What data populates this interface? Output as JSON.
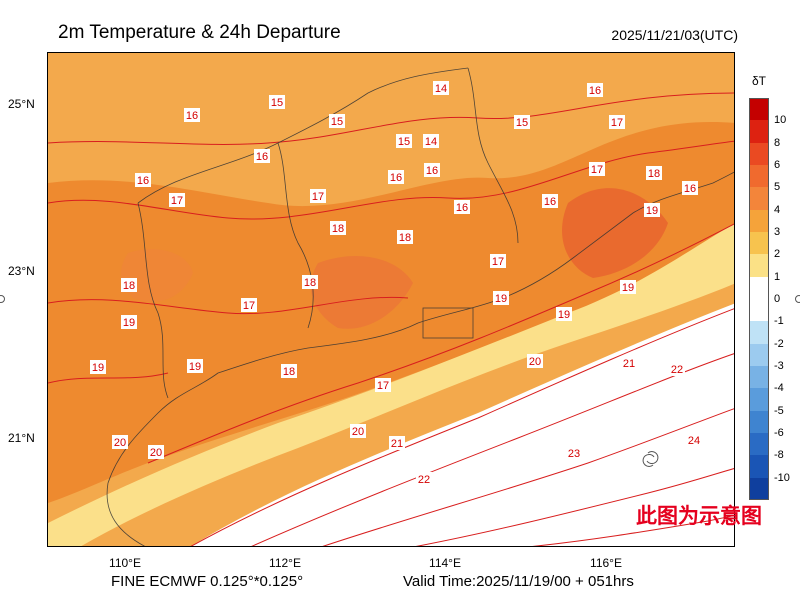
{
  "header": {
    "title": "2m Temperature & 24h Departure",
    "datetime": "2025/11/21/03(UTC)"
  },
  "axes": {
    "lat_labels": [
      "25°N",
      "23°N",
      "21°N"
    ],
    "lon_labels": [
      "110°E",
      "112°E",
      "114°E",
      "116°E"
    ]
  },
  "footer": {
    "model": "FINE ECMWF 0.125°*0.125°",
    "valid_time": "Valid Time:2025/11/19/00 + 051hrs"
  },
  "watermark": "此图为示意图",
  "colorbar": {
    "title": "δT",
    "labels": [
      "10",
      "8",
      "6",
      "5",
      "4",
      "3",
      "2",
      "1",
      "0",
      "-1",
      "-2",
      "-3",
      "-4",
      "-5",
      "-6",
      "-8",
      "-10"
    ],
    "colors": [
      "#c40000",
      "#dd2211",
      "#ea4a22",
      "#f06a2e",
      "#f3853a",
      "#f5a33a",
      "#f7c34e",
      "#fbe186",
      "#ffffff",
      "#ffffff",
      "#bfe2f6",
      "#9ccbef",
      "#78b2e5",
      "#5a9cdc",
      "#3f84d0",
      "#2a6bc4",
      "#1a55b5",
      "#0f3f9e"
    ]
  },
  "contour_labels": [
    "16",
    "15",
    "15",
    "14",
    "16",
    "16",
    "15",
    "14",
    "15",
    "16",
    "17",
    "17",
    "16",
    "16",
    "17",
    "16",
    "18",
    "18",
    "17",
    "17",
    "18",
    "18",
    "16",
    "16",
    "19",
    "18",
    "17",
    "18",
    "19",
    "18",
    "19",
    "17",
    "19",
    "20",
    "20",
    "19",
    "19",
    "21",
    "20",
    "21",
    "22",
    "22",
    "23",
    "24"
  ]
}
